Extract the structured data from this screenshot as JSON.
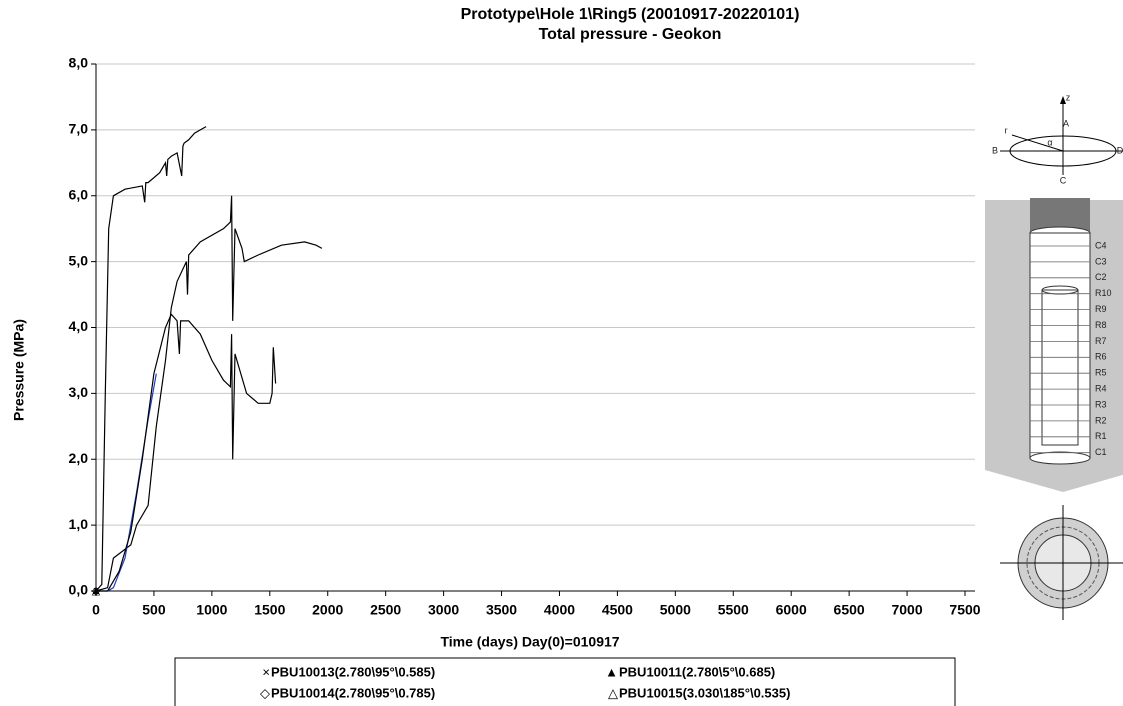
{
  "chart_data": {
    "type": "line",
    "title": "Prototype\\Hole 1\\Ring5   (20010917-20220101)",
    "subtitle": "Total pressure  - Geokon",
    "x_label": "Time  (days)  Day(0)=010917",
    "y_label": "Pressure (MPa)",
    "xlim": [
      0,
      7500
    ],
    "xticks": [
      0,
      500,
      1000,
      1500,
      2000,
      2500,
      3000,
      3500,
      4000,
      4500,
      5000,
      5500,
      6000,
      6500,
      7000,
      7500
    ],
    "ylim": [
      0,
      8
    ],
    "yticks": [
      {
        "value": 0,
        "label": "0,0"
      },
      {
        "value": 1,
        "label": "1,0"
      },
      {
        "value": 2,
        "label": "2,0"
      },
      {
        "value": 3,
        "label": "3,0"
      },
      {
        "value": 4,
        "label": "4,0"
      },
      {
        "value": 5,
        "label": "5,0"
      },
      {
        "value": 6,
        "label": "6,0"
      },
      {
        "value": 7,
        "label": "7,0"
      },
      {
        "value": 8,
        "label": "8,0"
      }
    ],
    "grid": true,
    "series": [
      {
        "name": "PBU10013(2.780\\95°\\0.585)",
        "marker": "×",
        "color": "#000000",
        "x": [
          0,
          50,
          80,
          110,
          150,
          250,
          400,
          420,
          430,
          450,
          550,
          600,
          610,
          620,
          650,
          700,
          740,
          750,
          760,
          800,
          850,
          900,
          950
        ],
        "values": [
          0,
          0.1,
          3.0,
          5.5,
          6.0,
          6.1,
          6.15,
          5.9,
          6.2,
          6.2,
          6.35,
          6.5,
          6.3,
          6.55,
          6.6,
          6.65,
          6.3,
          6.75,
          6.8,
          6.85,
          6.95,
          7.0,
          7.05
        ]
      },
      {
        "name": "PBU10011(2.780\\5°\\0.685)",
        "marker": "▲",
        "color": "#000000",
        "x": [
          0,
          100,
          150,
          300,
          350,
          450,
          520,
          600,
          650,
          700,
          780,
          790,
          800,
          900,
          1100,
          1160,
          1170,
          1180,
          1200,
          1260,
          1280,
          1400,
          1600,
          1800,
          1900,
          1950
        ],
        "values": [
          0,
          0.05,
          0.5,
          0.7,
          1.0,
          1.3,
          2.5,
          3.5,
          4.3,
          4.7,
          5.0,
          4.5,
          5.1,
          5.3,
          5.5,
          5.6,
          6.0,
          4.1,
          5.5,
          5.2,
          5.0,
          5.1,
          5.25,
          5.3,
          5.25,
          5.2
        ]
      },
      {
        "name": "PBU10014(2.780\\95°\\0.785)",
        "marker": "◇",
        "color": "#1f3fbf",
        "x": [
          0,
          100,
          150,
          250,
          350,
          450,
          520
        ],
        "values": [
          0,
          0,
          0.05,
          0.5,
          1.5,
          2.6,
          3.3
        ]
      },
      {
        "name": "PBU10015(3.030\\185°\\0.535)",
        "marker": "△",
        "color": "#000000",
        "x": [
          0,
          100,
          200,
          300,
          400,
          500,
          600,
          650,
          700,
          720,
          730,
          800,
          900,
          1000,
          1100,
          1160,
          1170,
          1180,
          1200,
          1300,
          1400,
          1500,
          1520,
          1530,
          1550
        ],
        "values": [
          0,
          0,
          0.3,
          0.9,
          2.0,
          3.3,
          4.0,
          4.2,
          4.1,
          3.6,
          4.1,
          4.1,
          3.9,
          3.5,
          3.2,
          3.1,
          3.9,
          2.0,
          3.6,
          3.0,
          2.85,
          2.85,
          3.0,
          3.7,
          3.15
        ]
      }
    ]
  },
  "diagram": {
    "axis_labels": [
      "z",
      "r",
      "α",
      "A",
      "B",
      "C",
      "D"
    ],
    "levels": [
      "C4",
      "C3",
      "C2",
      "R10",
      "R9",
      "R8",
      "R7",
      "R6",
      "R5",
      "R4",
      "R3",
      "R2",
      "R1",
      "C1"
    ]
  }
}
